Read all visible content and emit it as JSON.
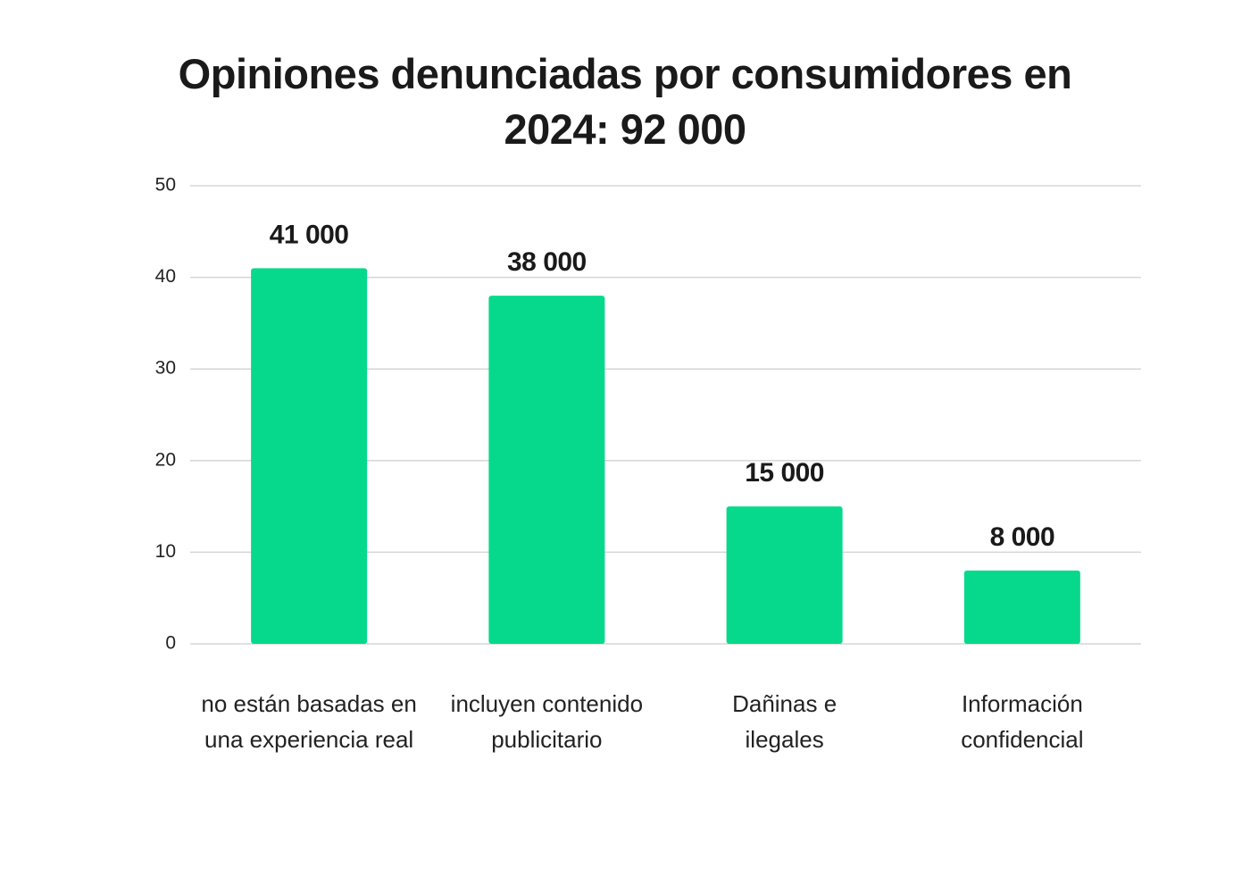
{
  "chart_data": {
    "type": "bar",
    "title": "Opiniones denunciadas por consumidores en 2024: 92 000",
    "categories": [
      [
        "no están basadas en",
        "una experiencia real"
      ],
      [
        "incluyen contenido",
        "publicitario"
      ],
      [
        "Dañinas e",
        "ilegales"
      ],
      [
        "Información",
        "confidencial"
      ]
    ],
    "values": [
      41,
      38,
      15,
      8
    ],
    "value_labels": [
      "41 000",
      "38 000",
      "15 000",
      "8 000"
    ],
    "color": "#06d98c",
    "ylim": [
      0,
      50
    ],
    "yticks": [
      0,
      10,
      20,
      30,
      40,
      50
    ],
    "grid": true
  }
}
